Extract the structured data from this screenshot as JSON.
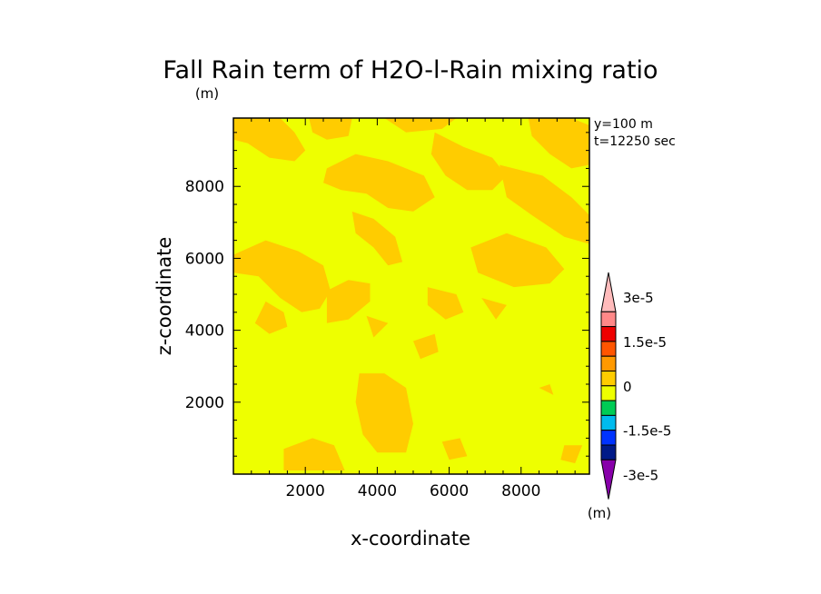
{
  "chart_data": {
    "type": "heatmap",
    "title": "Fall Rain term of H2O-l-Rain mixing ratio",
    "title_units": "(m)",
    "xlabel": "x-coordinate",
    "ylabel": "z-coordinate",
    "xlim": [
      0,
      9900
    ],
    "ylim": [
      0,
      9900
    ],
    "x_ticks": [
      2000,
      4000,
      6000,
      8000
    ],
    "y_ticks": [
      2000,
      4000,
      6000,
      8000
    ],
    "x_tick_labels": [
      "2000",
      "4000",
      "6000",
      "8000"
    ],
    "y_tick_labels": [
      "2000",
      "4000",
      "6000",
      "8000"
    ],
    "annotations": [
      "y=100 m",
      "t=12250 sec"
    ],
    "colorbar": {
      "levels": [
        -3e-05,
        -2.5e-05,
        -2e-05,
        -1.5e-05,
        -1e-05,
        -5e-06,
        0,
        5e-06,
        1e-05,
        1.5e-05,
        2e-05,
        2.5e-05,
        3e-05
      ],
      "colors": [
        "#8800aa",
        "#001a88",
        "#0033ff",
        "#00bbee",
        "#00cc55",
        "#eeff00",
        "#ffcc00",
        "#ff9900",
        "#ff5500",
        "#ee0000",
        "#ff8888",
        "#ffbbbb"
      ],
      "tick_values": [
        3e-05,
        1.5e-05,
        0,
        -1.5e-05,
        -3e-05
      ],
      "tick_labels": [
        "3e-5",
        "1.5e-5",
        "0",
        "-1.5e-5",
        "-3e-5"
      ],
      "units": "(m)"
    },
    "field": {
      "background_color": "#eeff00",
      "background_range": [
        -5e-06,
        0
      ],
      "patch_color": "#ffcc00",
      "patch_range": [
        0,
        5e-06
      ],
      "patches": [
        {
          "points": [
            [
              0,
              9900
            ],
            [
              1300,
              9900
            ],
            [
              1700,
              9500
            ],
            [
              2000,
              9000
            ],
            [
              1700,
              8700
            ],
            [
              1000,
              8800
            ],
            [
              400,
              9200
            ],
            [
              0,
              9300
            ]
          ]
        },
        {
          "points": [
            [
              2100,
              9900
            ],
            [
              3300,
              9900
            ],
            [
              3200,
              9400
            ],
            [
              2600,
              9300
            ],
            [
              2200,
              9500
            ]
          ]
        },
        {
          "points": [
            [
              4200,
              9900
            ],
            [
              6200,
              9900
            ],
            [
              5800,
              9600
            ],
            [
              4800,
              9500
            ]
          ]
        },
        {
          "points": [
            [
              2600,
              8500
            ],
            [
              3400,
              8900
            ],
            [
              4300,
              8700
            ],
            [
              5300,
              8300
            ],
            [
              5600,
              7700
            ],
            [
              5000,
              7300
            ],
            [
              4300,
              7400
            ],
            [
              3700,
              7800
            ],
            [
              3000,
              7900
            ],
            [
              2500,
              8100
            ]
          ]
        },
        {
          "points": [
            [
              3300,
              7300
            ],
            [
              3900,
              7100
            ],
            [
              4500,
              6600
            ],
            [
              4700,
              5900
            ],
            [
              4300,
              5800
            ],
            [
              3900,
              6300
            ],
            [
              3400,
              6700
            ]
          ]
        },
        {
          "points": [
            [
              0,
              6100
            ],
            [
              900,
              6500
            ],
            [
              1800,
              6200
            ],
            [
              2500,
              5800
            ],
            [
              2700,
              5100
            ],
            [
              2400,
              4600
            ],
            [
              1900,
              4500
            ],
            [
              1300,
              4900
            ],
            [
              700,
              5500
            ],
            [
              0,
              5600
            ]
          ]
        },
        {
          "points": [
            [
              900,
              4800
            ],
            [
              1400,
              4500
            ],
            [
              1500,
              4100
            ],
            [
              1000,
              3900
            ],
            [
              600,
              4200
            ]
          ]
        },
        {
          "points": [
            [
              5600,
              9500
            ],
            [
              6400,
              9100
            ],
            [
              7200,
              8800
            ],
            [
              7600,
              8300
            ],
            [
              7200,
              7900
            ],
            [
              6500,
              7900
            ],
            [
              5900,
              8300
            ],
            [
              5500,
              8900
            ]
          ]
        },
        {
          "points": [
            [
              8200,
              9900
            ],
            [
              9400,
              9900
            ],
            [
              9900,
              9700
            ],
            [
              9900,
              8600
            ],
            [
              9400,
              8500
            ],
            [
              8800,
              8900
            ],
            [
              8300,
              9400
            ]
          ]
        },
        {
          "points": [
            [
              7400,
              8600
            ],
            [
              8600,
              8300
            ],
            [
              9400,
              7700
            ],
            [
              9900,
              7200
            ],
            [
              9900,
              6400
            ],
            [
              9200,
              6600
            ],
            [
              8300,
              7200
            ],
            [
              7600,
              7700
            ]
          ]
        },
        {
          "points": [
            [
              6600,
              6300
            ],
            [
              7600,
              6700
            ],
            [
              8700,
              6300
            ],
            [
              9200,
              5700
            ],
            [
              8800,
              5300
            ],
            [
              7800,
              5200
            ],
            [
              6800,
              5600
            ]
          ]
        },
        {
          "points": [
            [
              5400,
              5200
            ],
            [
              6200,
              5000
            ],
            [
              6400,
              4500
            ],
            [
              5900,
              4300
            ],
            [
              5400,
              4700
            ]
          ]
        },
        {
          "points": [
            [
              6900,
              4900
            ],
            [
              7600,
              4700
            ],
            [
              7300,
              4300
            ]
          ]
        },
        {
          "points": [
            [
              2600,
              5100
            ],
            [
              3200,
              5400
            ],
            [
              3800,
              5300
            ],
            [
              3800,
              4800
            ],
            [
              3200,
              4300
            ],
            [
              2600,
              4200
            ]
          ]
        },
        {
          "points": [
            [
              3700,
              4400
            ],
            [
              4300,
              4200
            ],
            [
              3900,
              3800
            ]
          ]
        },
        {
          "points": [
            [
              5000,
              3700
            ],
            [
              5600,
              3900
            ],
            [
              5700,
              3400
            ],
            [
              5200,
              3200
            ]
          ]
        },
        {
          "points": [
            [
              3500,
              2800
            ],
            [
              4200,
              2800
            ],
            [
              4800,
              2400
            ],
            [
              5000,
              1400
            ],
            [
              4800,
              600
            ],
            [
              4000,
              600
            ],
            [
              3600,
              1100
            ],
            [
              3400,
              2000
            ]
          ]
        },
        {
          "points": [
            [
              1400,
              700
            ],
            [
              2200,
              1000
            ],
            [
              2800,
              800
            ],
            [
              3100,
              100
            ],
            [
              1400,
              100
            ]
          ]
        },
        {
          "points": [
            [
              5800,
              900
            ],
            [
              6300,
              1000
            ],
            [
              6500,
              500
            ],
            [
              6000,
              400
            ]
          ]
        },
        {
          "points": [
            [
              9200,
              800
            ],
            [
              9700,
              800
            ],
            [
              9500,
              300
            ],
            [
              9100,
              400
            ]
          ]
        },
        {
          "points": [
            [
              8500,
              2400
            ],
            [
              8800,
              2500
            ],
            [
              8900,
              2200
            ]
          ]
        }
      ]
    }
  }
}
